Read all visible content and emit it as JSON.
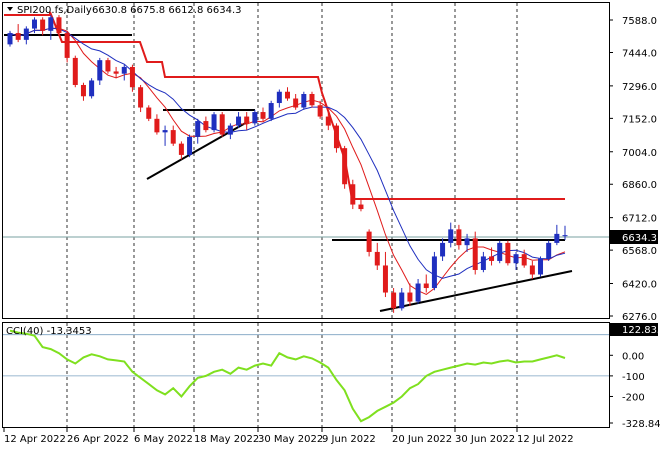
{
  "header": {
    "symbol": "SPI200.fs,Daily",
    "ohlc": "6630.8 6675.8 6612.8 6634.3"
  },
  "price_panel": {
    "y_ticks": [
      "7588.0",
      "7444.0",
      "7296.0",
      "7152.0",
      "7004.0",
      "6860.0",
      "6712.0",
      "6568.0",
      "6420.0",
      "6276.0"
    ],
    "current_price": "6634.3",
    "colors": {
      "bull": "#1f2fbf",
      "bear": "#e01b1b",
      "ma_fast": "#e01b1b",
      "ma_slow": "#1f2fbf",
      "stop": "#e01b1b",
      "trend": "#000000"
    }
  },
  "cci_panel": {
    "label": "CCI(40) -13.3453",
    "y_ticks": [
      "122.8355",
      "0.00",
      "-100",
      "-200",
      "-328.849"
    ],
    "color": "#7fe01f"
  },
  "x_ticks": [
    "12 Apr 2022",
    "26 Apr 2022",
    "6 May 2022",
    "18 May 2022",
    "30 May 2022",
    "9 Jun 2022",
    "20 Jun 2022",
    "30 Jun 2022",
    "12 Jul 2022"
  ],
  "chart_data": {
    "type": "candlestick",
    "candles": [
      [
        7480,
        7540,
        7470,
        7530
      ],
      [
        7530,
        7570,
        7490,
        7500
      ],
      [
        7500,
        7560,
        7480,
        7550
      ],
      [
        7550,
        7600,
        7530,
        7590
      ],
      [
        7590,
        7600,
        7520,
        7540
      ],
      [
        7540,
        7610,
        7500,
        7600
      ],
      [
        7600,
        7610,
        7520,
        7530
      ],
      [
        7530,
        7540,
        7400,
        7420
      ],
      [
        7420,
        7430,
        7290,
        7300
      ],
      [
        7300,
        7310,
        7230,
        7250
      ],
      [
        7250,
        7330,
        7240,
        7320
      ],
      [
        7320,
        7420,
        7300,
        7410
      ],
      [
        7410,
        7420,
        7350,
        7360
      ],
      [
        7360,
        7380,
        7330,
        7350
      ],
      [
        7350,
        7390,
        7320,
        7380
      ],
      [
        7380,
        7390,
        7270,
        7290
      ],
      [
        7290,
        7300,
        7180,
        7200
      ],
      [
        7200,
        7210,
        7140,
        7150
      ],
      [
        7150,
        7170,
        7080,
        7090
      ],
      [
        7090,
        7120,
        7030,
        7100
      ],
      [
        7100,
        7120,
        7030,
        7040
      ],
      [
        7040,
        7050,
        6970,
        6990
      ],
      [
        6990,
        7080,
        6980,
        7070
      ],
      [
        7070,
        7150,
        7040,
        7140
      ],
      [
        7140,
        7160,
        7090,
        7100
      ],
      [
        7100,
        7180,
        7090,
        7170
      ],
      [
        7170,
        7180,
        7070,
        7080
      ],
      [
        7080,
        7130,
        7060,
        7120
      ],
      [
        7120,
        7180,
        7110,
        7160
      ],
      [
        7160,
        7180,
        7100,
        7130
      ],
      [
        7130,
        7190,
        7120,
        7180
      ],
      [
        7180,
        7200,
        7140,
        7150
      ],
      [
        7150,
        7230,
        7140,
        7220
      ],
      [
        7220,
        7280,
        7200,
        7270
      ],
      [
        7270,
        7290,
        7230,
        7240
      ],
      [
        7240,
        7260,
        7190,
        7200
      ],
      [
        7200,
        7270,
        7190,
        7260
      ],
      [
        7260,
        7270,
        7200,
        7210
      ],
      [
        7210,
        7230,
        7150,
        7160
      ],
      [
        7160,
        7180,
        7100,
        7120
      ],
      [
        7120,
        7130,
        7000,
        7020
      ],
      [
        7020,
        7030,
        6840,
        6860
      ],
      [
        6860,
        6880,
        6750,
        6770
      ],
      [
        6770,
        6790,
        6740,
        6750
      ],
      [
        6650,
        6660,
        6540,
        6560
      ],
      [
        6560,
        6600,
        6480,
        6500
      ],
      [
        6500,
        6560,
        6360,
        6380
      ],
      [
        6380,
        6400,
        6290,
        6310
      ],
      [
        6310,
        6400,
        6300,
        6380
      ],
      [
        6380,
        6420,
        6320,
        6340
      ],
      [
        6340,
        6440,
        6330,
        6420
      ],
      [
        6420,
        6460,
        6380,
        6400
      ],
      [
        6400,
        6560,
        6390,
        6540
      ],
      [
        6540,
        6620,
        6520,
        6600
      ],
      [
        6600,
        6690,
        6580,
        6660
      ],
      [
        6660,
        6680,
        6570,
        6590
      ],
      [
        6590,
        6640,
        6560,
        6620
      ],
      [
        6620,
        6650,
        6460,
        6480
      ],
      [
        6480,
        6560,
        6470,
        6540
      ],
      [
        6540,
        6580,
        6500,
        6520
      ],
      [
        6520,
        6610,
        6510,
        6600
      ],
      [
        6600,
        6610,
        6500,
        6510
      ],
      [
        6510,
        6560,
        6480,
        6550
      ],
      [
        6550,
        6570,
        6490,
        6500
      ],
      [
        6500,
        6520,
        6440,
        6460
      ],
      [
        6460,
        6540,
        6450,
        6530
      ],
      [
        6530,
        6610,
        6520,
        6600
      ],
      [
        6600,
        6680,
        6590,
        6640
      ],
      [
        6630.8,
        6675.8,
        6612.8,
        6634.3
      ]
    ],
    "ylim": [
      6276,
      7640
    ],
    "cci": [
      120,
      110,
      105,
      95,
      40,
      30,
      10,
      -20,
      -40,
      -10,
      5,
      -5,
      -20,
      -25,
      -30,
      -80,
      -110,
      -140,
      -170,
      -190,
      -160,
      -200,
      -150,
      -110,
      -100,
      -80,
      -70,
      -90,
      -60,
      -70,
      -50,
      -40,
      -50,
      10,
      -10,
      -20,
      -5,
      -15,
      -35,
      -60,
      -120,
      -170,
      -260,
      -320,
      -300,
      -270,
      -250,
      -230,
      -200,
      -160,
      -140,
      -100,
      -80,
      -70,
      -60,
      -50,
      -40,
      -45,
      -35,
      -40,
      -30,
      -25,
      -35,
      -30,
      -30,
      -20,
      -10,
      0,
      -13.3453
    ],
    "cci_ylim": [
      -328.849,
      122.8355
    ]
  }
}
